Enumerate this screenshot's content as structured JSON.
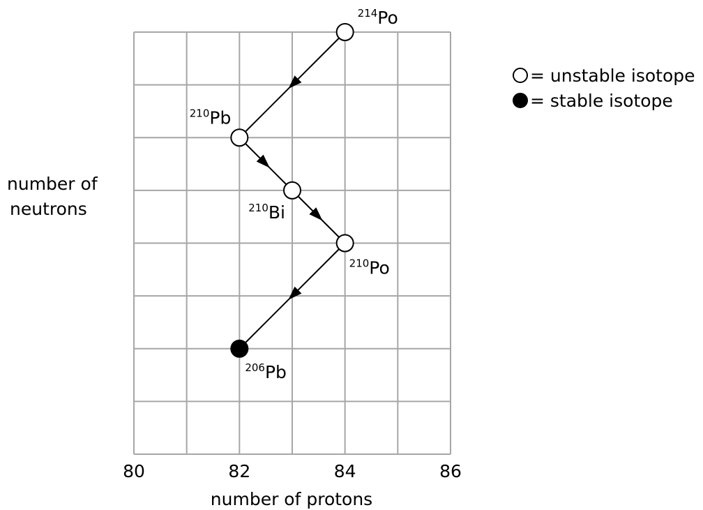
{
  "chart_data": {
    "type": "diagram",
    "xlabel": "number of protons",
    "ylabel_lines": [
      "number of",
      "neutrons"
    ],
    "x_ticks": [
      "80",
      "82",
      "84",
      "86"
    ],
    "xlim": [
      80,
      86
    ],
    "y_rows": 8,
    "grid": true,
    "legend": {
      "placement": "top-right",
      "entries": [
        {
          "symbol": "open-circle",
          "label": "= unstable isotope"
        },
        {
          "symbol": "filled-circle",
          "label": "= stable isotope"
        }
      ]
    },
    "isotopes": [
      {
        "mass": "214",
        "element": "Po",
        "protons": 84,
        "neutron_level": 8,
        "stable": false
      },
      {
        "mass": "210",
        "element": "Pb",
        "protons": 82,
        "neutron_level": 6,
        "stable": false
      },
      {
        "mass": "210",
        "element": "Bi",
        "protons": 83,
        "neutron_level": 5,
        "stable": false
      },
      {
        "mass": "210",
        "element": "Po",
        "protons": 84,
        "neutron_level": 4,
        "stable": false
      },
      {
        "mass": "206",
        "element": "Pb",
        "protons": 82,
        "neutron_level": 2,
        "stable": true
      }
    ],
    "decays": [
      {
        "from": 0,
        "to": 1
      },
      {
        "from": 1,
        "to": 2
      },
      {
        "from": 2,
        "to": 3
      },
      {
        "from": 3,
        "to": 4
      }
    ],
    "colors": {
      "grid": "#a6a6a6",
      "ink": "#000000",
      "open_fill": "#ffffff"
    }
  }
}
